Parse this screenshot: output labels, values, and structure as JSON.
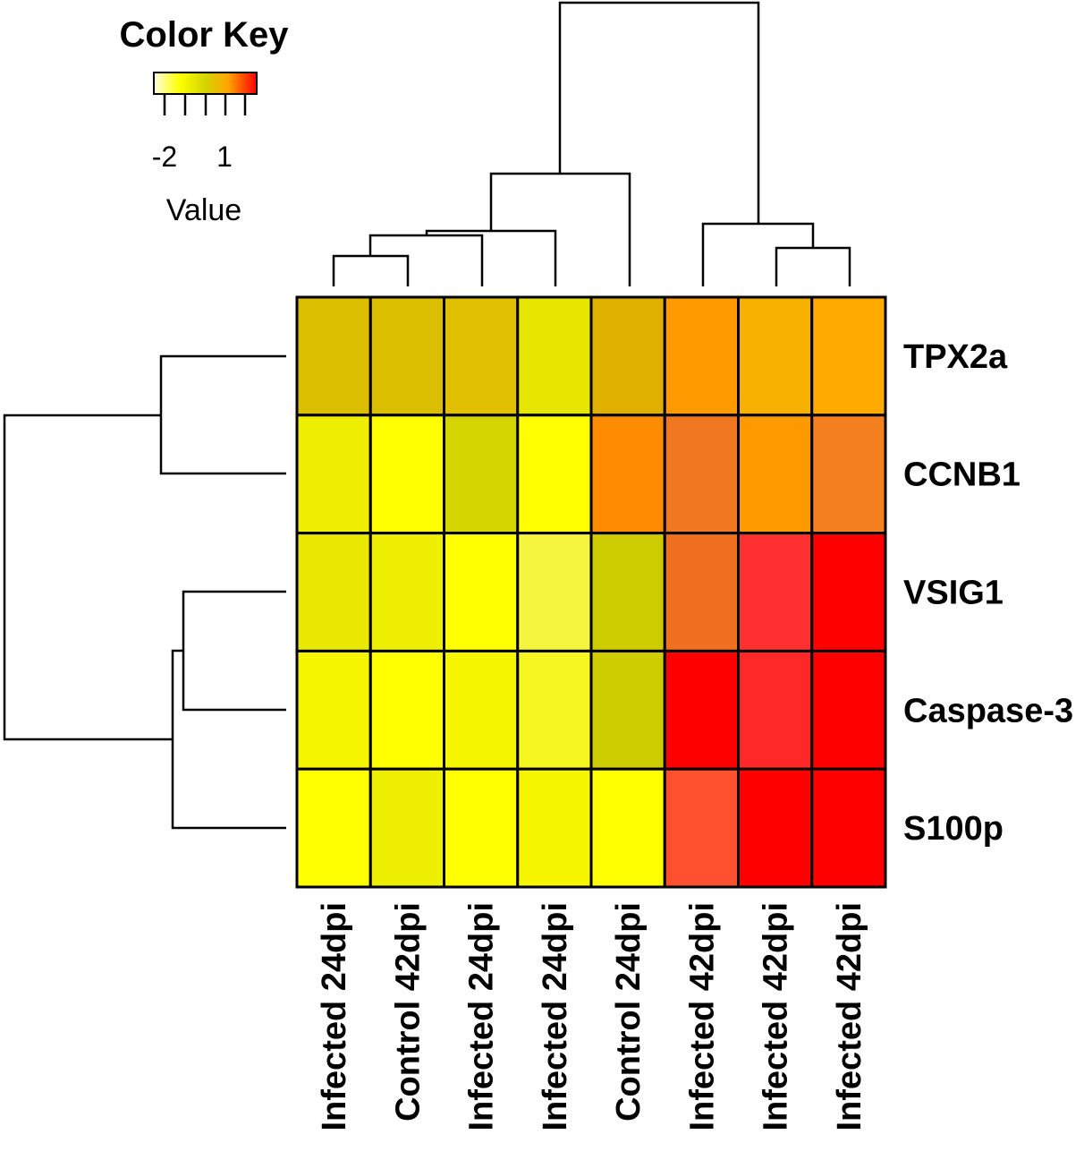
{
  "chart_data": {
    "type": "heatmap",
    "color_key": {
      "title": "Color Key",
      "xlabel": "Value",
      "tick_labels": [
        "-2",
        "1"
      ],
      "gradient": [
        "#ffffe0",
        "#ffff00",
        "#d4d400",
        "#ffa500",
        "#ff0000"
      ]
    },
    "rows": [
      "TPX2a",
      "CCNB1",
      "VSIG1",
      "Caspase-3",
      "S100p"
    ],
    "columns": [
      "Infected 24dpi",
      "Control 42dpi",
      "Infected 24dpi",
      "Infected 24dpi",
      "Control 24dpi",
      "Infected 42dpi",
      "Infected 42dpi",
      "Infected 42dpi"
    ],
    "cell_colors": [
      [
        "#dcbe00",
        "#dcbe00",
        "#e0c000",
        "#e6e600",
        "#e0b000",
        "#ff9900",
        "#f5b000",
        "#ffaa00"
      ],
      [
        "#eeee00",
        "#ffff00",
        "#d4d400",
        "#ffff00",
        "#ff8c00",
        "#f07820",
        "#ff9900",
        "#f58020"
      ],
      [
        "#e8e800",
        "#eeee00",
        "#ffff00",
        "#f5f540",
        "#cccc00",
        "#f07020",
        "#ff3030",
        "#ff0000"
      ],
      [
        "#f5f500",
        "#ffff00",
        "#f5f500",
        "#f5f520",
        "#cccc00",
        "#ff0000",
        "#ff2828",
        "#ff0000"
      ],
      [
        "#ffff00",
        "#eeee00",
        "#ffff00",
        "#f5f500",
        "#ffff00",
        "#ff5030",
        "#ff0000",
        "#ff0000"
      ]
    ]
  }
}
